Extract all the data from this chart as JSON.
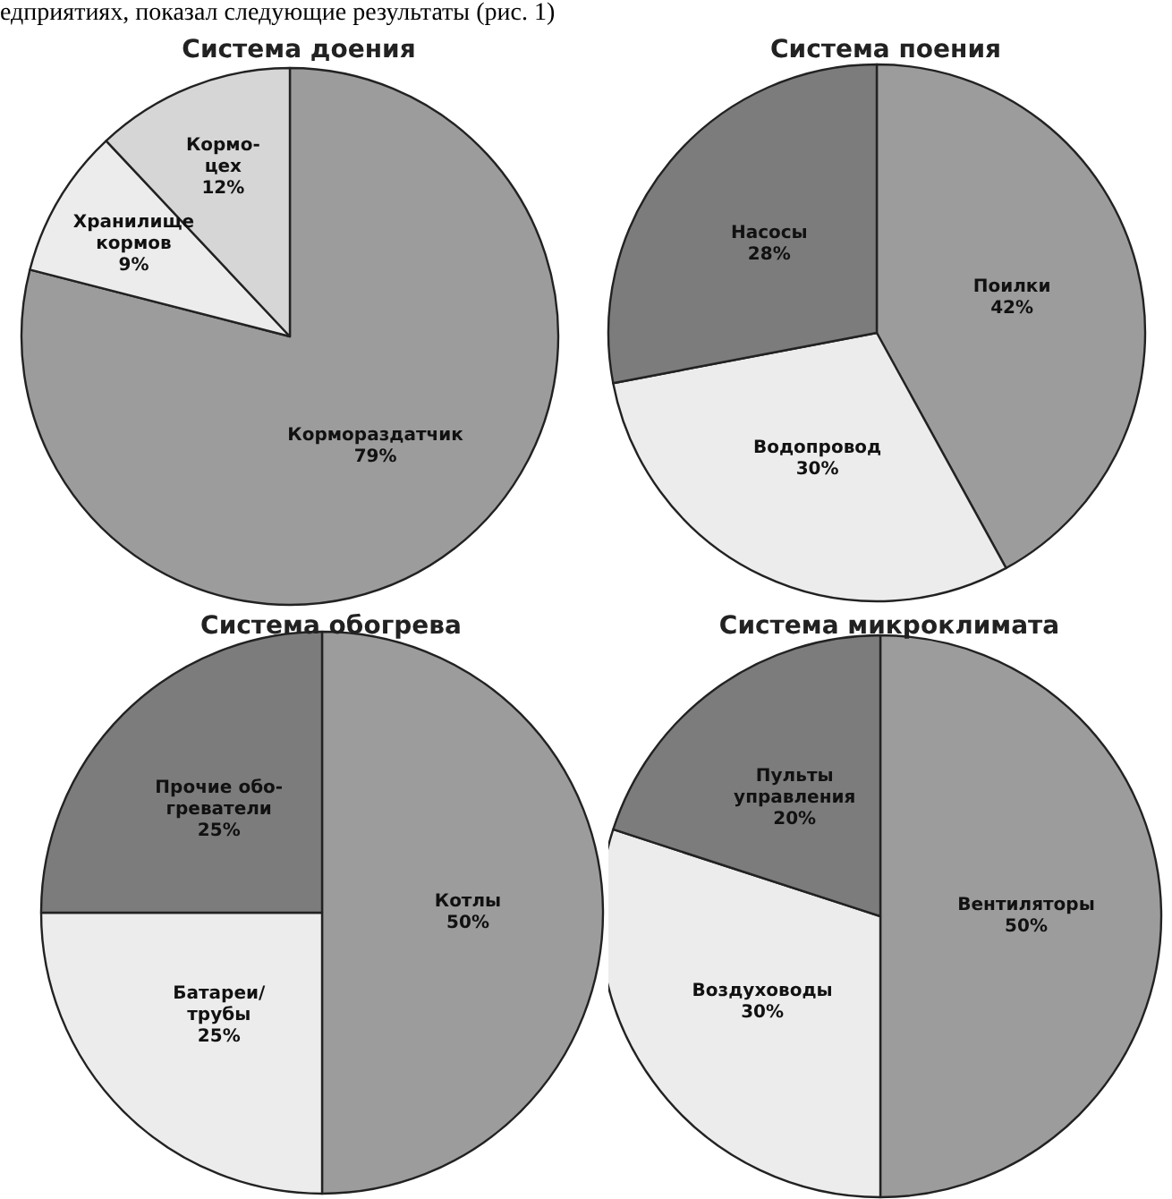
{
  "chart_data": [
    {
      "type": "pie",
      "title": "Система доения",
      "annotations": [
        "едприятиях, показал следующие результаты (рис. 1)"
      ],
      "categories": [
        "Кормораздатчик",
        "Хранилище\nкормов",
        "Кормо-\nцех"
      ],
      "values": [
        79,
        9,
        12
      ],
      "value_labels": [
        "79%",
        "9%",
        "12%"
      ],
      "colors": [
        "#9c9c9c",
        "#ececec",
        "#d6d6d6"
      ]
    },
    {
      "type": "pie",
      "title": "Система поения",
      "categories": [
        "Поилки",
        "Водопровод",
        "Насосы"
      ],
      "values": [
        42,
        30,
        28
      ],
      "value_labels": [
        "42%",
        "30%",
        "28%"
      ],
      "colors": [
        "#9c9c9c",
        "#ececec",
        "#7c7c7c"
      ]
    },
    {
      "type": "pie",
      "title": "Система обогрева",
      "categories": [
        "Котлы",
        "Батареи/\nтрубы",
        "Прочие обо-\nгреватели"
      ],
      "values": [
        50,
        25,
        25
      ],
      "value_labels": [
        "50%",
        "25%",
        "25%"
      ],
      "colors": [
        "#9c9c9c",
        "#ececec",
        "#7c7c7c"
      ]
    },
    {
      "type": "pie",
      "title": "Система микроклимата",
      "categories": [
        "Вентиляторы",
        "Воздуховоды",
        "Пульты\nуправления"
      ],
      "values": [
        50,
        30,
        20
      ],
      "value_labels": [
        "50%",
        "30%",
        "20%"
      ],
      "colors": [
        "#9c9c9c",
        "#ececec",
        "#7c7c7c"
      ]
    }
  ]
}
